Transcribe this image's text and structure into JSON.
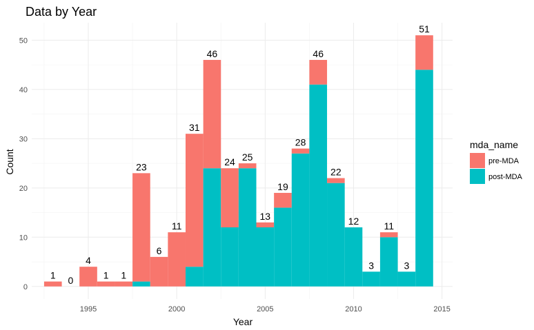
{
  "chart_data": {
    "type": "bar",
    "stacked": true,
    "title": "Data by Year",
    "xlabel": "Year",
    "ylabel": "Count",
    "x": [
      1993,
      1994,
      1995,
      1996,
      1997,
      1998,
      1999,
      2000,
      2001,
      2002,
      2003,
      2004,
      2005,
      2006,
      2007,
      2008,
      2009,
      2010,
      2011,
      2012,
      2013,
      2014
    ],
    "series": [
      {
        "name": "pre-MDA",
        "color": "#F8766D",
        "values": [
          1,
          0,
          4,
          1,
          1,
          22,
          6,
          11,
          27,
          22,
          12,
          1,
          1,
          3,
          1,
          5,
          1,
          0,
          0,
          1,
          0,
          7
        ]
      },
      {
        "name": "post-MDA",
        "color": "#00BFC4",
        "values": [
          0,
          0,
          0,
          0,
          0,
          1,
          0,
          0,
          4,
          24,
          12,
          24,
          12,
          16,
          27,
          41,
          21,
          12,
          3,
          10,
          3,
          44
        ]
      }
    ],
    "totals": [
      "1",
      "0",
      "4",
      "1",
      "1",
      "23",
      "6",
      "11",
      "31",
      "46",
      "24",
      "25",
      "13",
      "19",
      "28",
      "46",
      "22",
      "12",
      "3",
      "11",
      "3",
      "51"
    ],
    "xlim": [
      1991.8,
      2015.6
    ],
    "ylim": [
      -2.55,
      53.55
    ],
    "x_ticks": [
      1995,
      2000,
      2005,
      2010,
      2015
    ],
    "x_tick_labels": [
      "1995",
      "2000",
      "2005",
      "2010",
      "2015"
    ],
    "y_ticks": [
      0,
      10,
      20,
      30,
      40,
      50
    ],
    "y_tick_labels": [
      "0",
      "10",
      "20",
      "30",
      "40",
      "50"
    ],
    "grid": true,
    "legend": {
      "title": "mda_name",
      "placement": "right"
    }
  }
}
